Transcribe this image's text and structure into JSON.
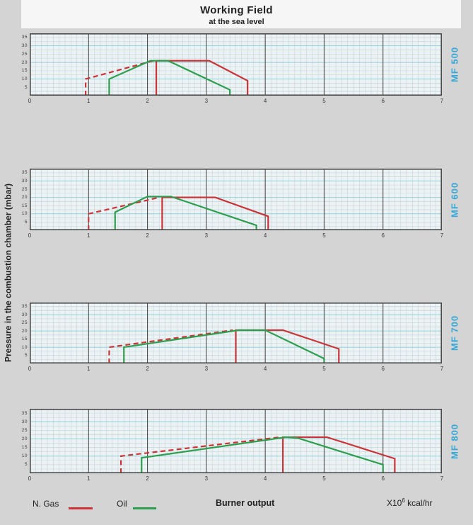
{
  "page": {
    "title": "Working Field",
    "subtitle": "at the sea level",
    "y_axis_label": "Pressure in the combustion chamber (mbar)",
    "x_axis_title": "Burner output",
    "x_axis_unit": {
      "prefix": "X10",
      "sup": "6",
      "suffix": " kcal/hr"
    }
  },
  "legend": {
    "items": [
      {
        "label": "N. Gas",
        "color": "#cc3338"
      },
      {
        "label": "Oil",
        "color": "#2d9e4e"
      }
    ]
  },
  "colors": {
    "gas": "#cc3338",
    "oil": "#2d9e4e",
    "model_label": "#33a8d8",
    "plot_bg": "#edf3f4",
    "grid_minor_v": "#c2d3da",
    "grid_minor_h": "#c6d8db",
    "grid_accent_h": "#8ed2d8",
    "grid_major_v": "#4d4d4d",
    "border": "#4a4a4a"
  },
  "grid": {
    "minor_x_step": 0.1,
    "major_x_step": 1.0,
    "minor_y_step": 0.25,
    "accent_y_step": 1.0
  },
  "chart_data": [
    {
      "name": "MF 500",
      "type": "line",
      "xlim": [
        0,
        7
      ],
      "ylim": [
        0,
        3.75
      ],
      "x_ticks": [
        "0",
        "1",
        "2",
        "3",
        "4",
        "5",
        "6",
        "7"
      ],
      "y_ticks": [
        {
          "v": 0.5,
          "label": "5"
        },
        {
          "v": 1.0,
          "label": "10"
        },
        {
          "v": 1.5,
          "label": "15"
        },
        {
          "v": 2.0,
          "label": "20"
        },
        {
          "v": 2.5,
          "label": "25"
        },
        {
          "v": 3.0,
          "label": "30"
        },
        {
          "v": 3.5,
          "label": "35"
        }
      ],
      "series": [
        {
          "name": "N. Gas (extended range, dashed)",
          "fuel": "gas",
          "dash": true,
          "points": [
            [
              0.95,
              0
            ],
            [
              0.95,
              1.0
            ],
            [
              2.1,
              2.1
            ]
          ]
        },
        {
          "name": "N. Gas",
          "fuel": "gas",
          "dash": false,
          "points": [
            [
              2.15,
              0
            ],
            [
              2.15,
              2.1
            ],
            [
              3.05,
              2.1
            ],
            [
              3.7,
              0.9
            ],
            [
              3.7,
              0
            ]
          ]
        },
        {
          "name": "Oil",
          "fuel": "oil",
          "dash": false,
          "points": [
            [
              1.35,
              0
            ],
            [
              1.35,
              1.0
            ],
            [
              2.05,
              2.1
            ],
            [
              2.35,
              2.1
            ],
            [
              3.4,
              0.35
            ],
            [
              3.4,
              0
            ]
          ]
        }
      ]
    },
    {
      "name": "MF 600",
      "type": "line",
      "xlim": [
        0,
        7
      ],
      "ylim": [
        0,
        3.75
      ],
      "x_ticks": [
        "0",
        "1",
        "2",
        "3",
        "4",
        "5",
        "6",
        "7"
      ],
      "y_ticks": [
        {
          "v": 0.5,
          "label": "5"
        },
        {
          "v": 1.0,
          "label": "10"
        },
        {
          "v": 1.5,
          "label": "15"
        },
        {
          "v": 2.0,
          "label": "20"
        },
        {
          "v": 2.5,
          "label": "25"
        },
        {
          "v": 3.0,
          "label": "30"
        },
        {
          "v": 3.5,
          "label": "35"
        }
      ],
      "series": [
        {
          "name": "N. Gas (extended range, dashed)",
          "fuel": "gas",
          "dash": true,
          "points": [
            [
              1.0,
              0
            ],
            [
              1.0,
              1.0
            ],
            [
              2.2,
              2.0
            ]
          ]
        },
        {
          "name": "N. Gas",
          "fuel": "gas",
          "dash": false,
          "points": [
            [
              2.25,
              0
            ],
            [
              2.25,
              2.0
            ],
            [
              3.15,
              2.0
            ],
            [
              4.05,
              0.85
            ],
            [
              4.05,
              0
            ]
          ]
        },
        {
          "name": "Oil",
          "fuel": "oil",
          "dash": false,
          "points": [
            [
              1.45,
              0
            ],
            [
              1.45,
              1.1
            ],
            [
              2.0,
              2.05
            ],
            [
              2.4,
              2.05
            ],
            [
              3.85,
              0.3
            ],
            [
              3.85,
              0
            ]
          ]
        }
      ]
    },
    {
      "name": "MF 700",
      "type": "line",
      "xlim": [
        0,
        7
      ],
      "ylim": [
        0,
        3.75
      ],
      "x_ticks": [
        "0",
        "1",
        "2",
        "3",
        "4",
        "5",
        "6",
        "7"
      ],
      "y_ticks": [
        {
          "v": 0.5,
          "label": "5"
        },
        {
          "v": 1.0,
          "label": "10"
        },
        {
          "v": 1.5,
          "label": "15"
        },
        {
          "v": 2.0,
          "label": "20"
        },
        {
          "v": 2.5,
          "label": "25"
        },
        {
          "v": 3.0,
          "label": "30"
        },
        {
          "v": 3.5,
          "label": "35"
        }
      ],
      "series": [
        {
          "name": "N. Gas (extended range, dashed)",
          "fuel": "gas",
          "dash": true,
          "points": [
            [
              1.35,
              0
            ],
            [
              1.35,
              1.0
            ],
            [
              3.45,
              2.05
            ]
          ]
        },
        {
          "name": "N. Gas",
          "fuel": "gas",
          "dash": false,
          "points": [
            [
              3.5,
              0
            ],
            [
              3.5,
              2.05
            ],
            [
              4.3,
              2.05
            ],
            [
              5.25,
              0.9
            ],
            [
              5.25,
              0
            ]
          ]
        },
        {
          "name": "Oil",
          "fuel": "oil",
          "dash": false,
          "points": [
            [
              1.6,
              0
            ],
            [
              1.6,
              1.0
            ],
            [
              3.55,
              2.05
            ],
            [
              4.0,
              2.05
            ],
            [
              5.0,
              0.3
            ],
            [
              5.0,
              0
            ]
          ]
        }
      ]
    },
    {
      "name": "MF 800",
      "type": "line",
      "xlim": [
        0,
        7
      ],
      "ylim": [
        0,
        3.75
      ],
      "x_ticks": [
        "0",
        "1",
        "2",
        "3",
        "4",
        "5",
        "6",
        "7"
      ],
      "y_ticks": [
        {
          "v": 0.5,
          "label": "5"
        },
        {
          "v": 1.0,
          "label": "10"
        },
        {
          "v": 1.5,
          "label": "15"
        },
        {
          "v": 2.0,
          "label": "20"
        },
        {
          "v": 2.5,
          "label": "25"
        },
        {
          "v": 3.0,
          "label": "30"
        },
        {
          "v": 3.5,
          "label": "35"
        }
      ],
      "series": [
        {
          "name": "N. Gas (extended range, dashed)",
          "fuel": "gas",
          "dash": true,
          "points": [
            [
              1.55,
              0
            ],
            [
              1.55,
              1.0
            ],
            [
              4.25,
              2.1
            ]
          ]
        },
        {
          "name": "N. Gas",
          "fuel": "gas",
          "dash": false,
          "points": [
            [
              4.3,
              0
            ],
            [
              4.3,
              2.1
            ],
            [
              5.05,
              2.1
            ],
            [
              6.2,
              0.85
            ],
            [
              6.2,
              0
            ]
          ]
        },
        {
          "name": "Oil",
          "fuel": "oil",
          "dash": false,
          "points": [
            [
              1.9,
              0
            ],
            [
              1.9,
              0.9
            ],
            [
              4.35,
              2.1
            ],
            [
              4.55,
              2.05
            ],
            [
              6.0,
              0.5
            ],
            [
              6.0,
              0
            ]
          ]
        }
      ]
    }
  ]
}
